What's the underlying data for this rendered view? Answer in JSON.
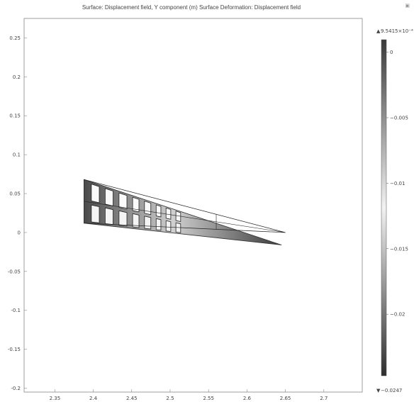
{
  "title": "Surface: Displacement field, Y component (m)   Surface Deformation: Displacement field",
  "corner_icon": "camera-icon",
  "chart_data": {
    "type": "heatmap",
    "title": "Surface: Displacement field, Y component (m)   Surface Deformation: Displacement field",
    "xlim": [
      2.31,
      2.75
    ],
    "ylim": [
      -0.205,
      0.275
    ],
    "x_ticks": [
      "2.35",
      "2.4",
      "2.45",
      "2.5",
      "2.55",
      "2.6",
      "2.65",
      "2.7"
    ],
    "y_ticks": [
      "0.25",
      "0.2",
      "0.15",
      "0.1",
      "0.05",
      "0",
      "-0.05",
      "-0.1",
      "-0.15",
      "-0.2"
    ],
    "grid": false,
    "undeformed_outline": [
      [
        2.388,
        0.068
      ],
      [
        2.65,
        0.0
      ],
      [
        2.388,
        0.012
      ]
    ],
    "deformed_shape": [
      [
        2.388,
        0.068
      ],
      [
        2.645,
        -0.016
      ],
      [
        2.388,
        0.012
      ]
    ],
    "colorbar": {
      "min": -0.0247,
      "max": 0.00095415,
      "max_label": "9.5415×10⁻⁴",
      "min_label": "−0.0247",
      "ticks": [
        {
          "value": 0,
          "label": "0"
        },
        {
          "value": -0.005,
          "label": "−0.005"
        },
        {
          "value": -0.01,
          "label": "−0.01"
        },
        {
          "value": -0.015,
          "label": "−0.015"
        },
        {
          "value": -0.02,
          "label": "−0.02"
        }
      ],
      "colormap": "gray",
      "placement": "right"
    }
  }
}
